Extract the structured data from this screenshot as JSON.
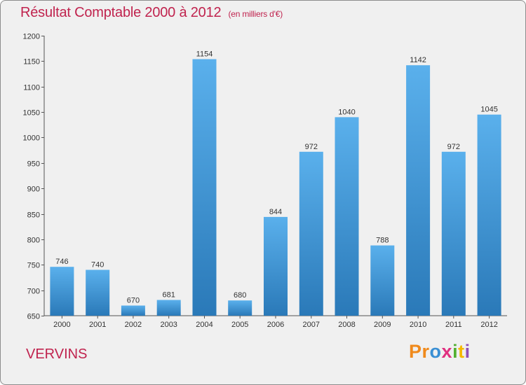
{
  "chart_data": {
    "type": "bar",
    "title": "Résultat Comptable 2000 à 2012",
    "subtitle": "(en milliers d'€)",
    "categories": [
      "2000",
      "2001",
      "2002",
      "2003",
      "2004",
      "2005",
      "2006",
      "2007",
      "2008",
      "2009",
      "2010",
      "2011",
      "2012"
    ],
    "values": [
      746,
      740,
      670,
      681,
      1154,
      680,
      844,
      972,
      1040,
      788,
      1142,
      972,
      1045
    ],
    "yticks": [
      650,
      700,
      750,
      800,
      850,
      900,
      950,
      1000,
      1050,
      1100,
      1150,
      1200
    ],
    "ylim": [
      650,
      1200
    ],
    "xlabel": "",
    "ylabel": "",
    "grid": false,
    "bar_color": "#4aa3e6"
  },
  "commune": "VERVINS",
  "logo": {
    "p1": "Pr",
    "p2": "o",
    "p3": "x",
    "p4": "i",
    "p5": "t",
    "p6": "i"
  }
}
